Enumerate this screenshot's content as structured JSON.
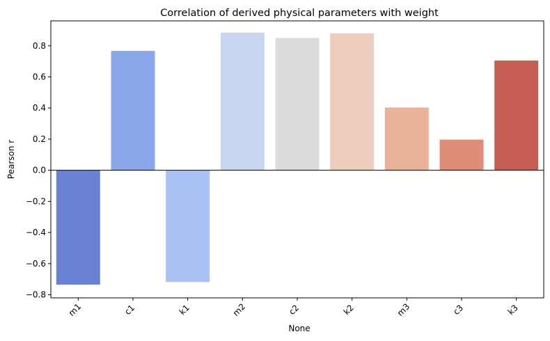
{
  "chart_data": {
    "type": "bar",
    "title": "Correlation of derived physical parameters with weight",
    "xlabel": "None",
    "ylabel": "Pearson r",
    "categories": [
      "m1",
      "c1",
      "k1",
      "m2",
      "c2",
      "k2",
      "m3",
      "c3",
      "k3"
    ],
    "values": [
      -0.735,
      0.767,
      -0.718,
      0.884,
      0.85,
      0.88,
      0.403,
      0.197,
      0.705
    ],
    "colors": [
      "#6a82d6",
      "#8aa7ec",
      "#a9c1f5",
      "#c7d6f0",
      "#dcdcdc",
      "#eccdbe",
      "#ebb29a",
      "#de8d76",
      "#c55d52"
    ],
    "ylim": [
      -0.82,
      0.96
    ],
    "yticks": [
      -0.8,
      -0.6,
      -0.4,
      -0.2,
      0.0,
      0.2,
      0.4,
      0.6,
      0.8
    ],
    "ytick_labels": [
      "−0.8",
      "−0.6",
      "−0.4",
      "−0.2",
      "0.0",
      "0.2",
      "0.4",
      "0.6",
      "0.8"
    ],
    "zero_line": true,
    "grid": false,
    "legend": "none"
  }
}
